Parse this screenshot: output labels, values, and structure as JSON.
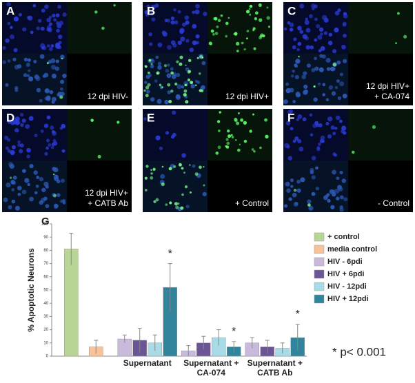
{
  "panels": [
    {
      "label": "A",
      "caption": [
        "12 dpi HIV-"
      ]
    },
    {
      "label": "B",
      "caption": [
        "12 dpi HIV+"
      ]
    },
    {
      "label": "C",
      "caption": [
        "12 dpi HIV+",
        "+ CA-074"
      ]
    },
    {
      "label": "D",
      "caption": [
        "12 dpi HIV+",
        "+ CATB Ab"
      ]
    },
    {
      "label": "E",
      "caption": [
        "+ Control"
      ]
    },
    {
      "label": "F",
      "caption": [
        "- Control"
      ]
    }
  ],
  "chart_data": {
    "type": "bar",
    "panel_label": "G",
    "y_label": "% Apoptotic Neurons",
    "categories": [
      null,
      "Supernatant",
      "Supernatant + CA-074",
      "Supernatant + CATB Ab"
    ],
    "series": [
      {
        "name": "+ control",
        "color": "#b8d595",
        "values": [
          81,
          null,
          null,
          null
        ],
        "errors": [
          12,
          null,
          null,
          null
        ]
      },
      {
        "name": "media control",
        "color": "#f8c39b",
        "values": [
          7,
          null,
          null,
          null
        ],
        "errors": [
          5,
          null,
          null,
          null
        ]
      },
      {
        "name": "HIV -  6pdi",
        "color": "#c9badc",
        "values": [
          null,
          13,
          4,
          10
        ],
        "errors": [
          null,
          3,
          4,
          4
        ]
      },
      {
        "name": "HIV + 6pdi",
        "color": "#6b5594",
        "values": [
          null,
          12,
          10,
          7
        ],
        "errors": [
          null,
          9,
          5,
          5
        ]
      },
      {
        "name": "HIV - 12pdi",
        "color": "#a9dbe7",
        "values": [
          null,
          10,
          14,
          6
        ],
        "errors": [
          null,
          6,
          6,
          4
        ]
      },
      {
        "name": "HIV + 12pdi",
        "color": "#31849b",
        "values": [
          null,
          52,
          7,
          14
        ],
        "errors": [
          null,
          18,
          4,
          10
        ]
      }
    ],
    "ylim": [
      0,
      100
    ],
    "yticks": [
      0,
      10,
      20,
      30,
      40,
      50,
      60,
      70,
      80,
      90,
      100
    ],
    "significance_marker": "*",
    "significance_note": "* p< 0.001"
  }
}
